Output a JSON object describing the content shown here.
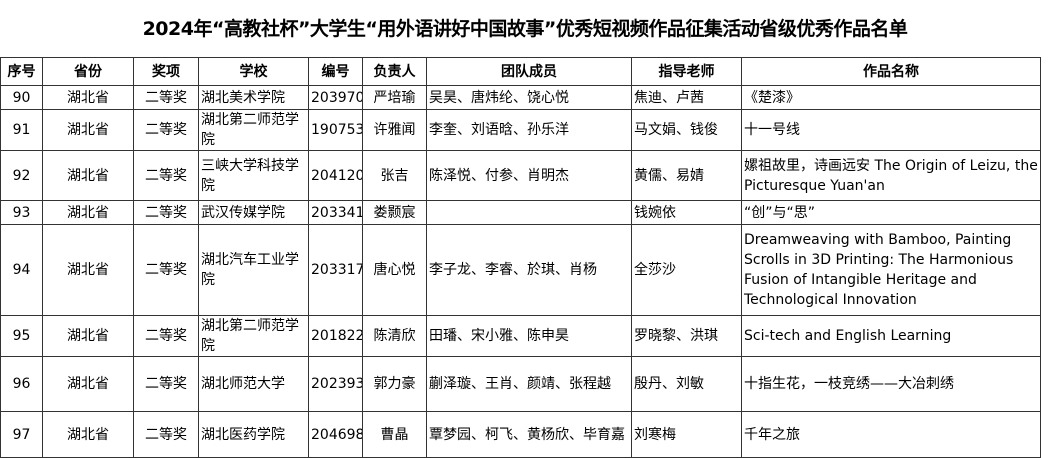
{
  "title": "2024年“高教社杯”大学生“用外语讲好中国故事”优秀短视频作品征集活动省级优秀作品名单",
  "headers": [
    "序号",
    "省份",
    "奖项",
    "学校",
    "编号",
    "负责人",
    "团队成员",
    "指导老师",
    "作品名称"
  ],
  "rows": [
    [
      "90",
      "湖北省",
      "二等奖",
      "湖北美术学院",
      "203970",
      "严培瑜",
      "吴昊、唐炜纶、饶心悦",
      "焦迪、卢茜",
      "《楚漆》"
    ],
    [
      "91",
      "湖北省",
      "二等奖",
      "湖北第二师范学院",
      "190753",
      "许雅闻",
      "李奎、刘语晗、孙乐洋",
      "马文娟、钱俊",
      "十一号线"
    ],
    [
      "92",
      "湖北省",
      "二等奖",
      "三峡大学科技学院",
      "204120",
      "张吉",
      "陈泽悦、付参、肖明杰",
      "黄儒、易婧",
      "嫘祖故里，诗画远安 The Origin of Leizu, the Picturesque Yuan'an"
    ],
    [
      "93",
      "湖北省",
      "二等奖",
      "武汉传媒学院",
      "203341",
      "娄颢宸",
      "",
      "钱婉依",
      "“创”与“思”"
    ],
    [
      "94",
      "湖北省",
      "二等奖",
      "湖北汽车工业学院",
      "203317",
      "唐心悦",
      "李子龙、李睿、於琪、肖杨",
      "全莎沙",
      "Dreamweaving with Bamboo, Painting Scrolls in 3D Printing: The Harmonious Fusion of Intangible Heritage and Technological Innovation"
    ],
    [
      "95",
      "湖北省",
      "二等奖",
      "湖北第二师范学院",
      "201822",
      "陈清欣",
      "田璠、宋小雅、陈申昊",
      "罗晓黎、洪琪",
      "Sci-tech and English Learning"
    ],
    [
      "96",
      "湖北省",
      "二等奖",
      "湖北师范大学",
      "202393",
      "郭力豪",
      "蒯泽璇、王肖、颜靖、张程越",
      "殷丹、刘敏",
      "十指生花，一枝竞绣——大冶刺绣"
    ],
    [
      "97",
      "湖北省",
      "二等奖",
      "湖北医药学院",
      "204698",
      "曹晶",
      "覃梦园、柯飞、黄杨欣、毕育嘉",
      "刘寒梅",
      "千年之旅"
    ]
  ]
}
